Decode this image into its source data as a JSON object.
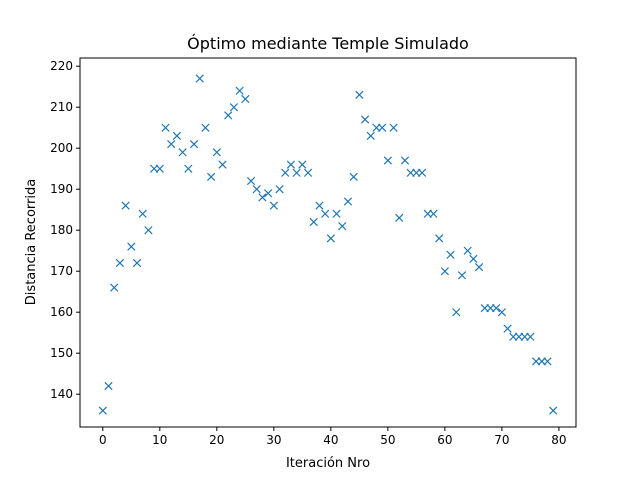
{
  "chart_data": {
    "type": "scatter",
    "title": "Óptimo mediante Temple Simulado",
    "xlabel": "Iteración Nro",
    "ylabel": "Distancia Recorrida",
    "xlim": [
      -4,
      83
    ],
    "ylim": [
      132,
      222
    ],
    "xticks": [
      0,
      10,
      20,
      30,
      40,
      50,
      60,
      70,
      80
    ],
    "yticks": [
      140,
      150,
      160,
      170,
      180,
      190,
      200,
      210,
      220
    ],
    "marker": "x",
    "color": "#1f77b4",
    "grid": false,
    "x": [
      0,
      1,
      2,
      3,
      4,
      5,
      6,
      7,
      8,
      9,
      10,
      11,
      12,
      13,
      14,
      15,
      16,
      17,
      18,
      19,
      20,
      21,
      22,
      23,
      24,
      25,
      26,
      27,
      28,
      29,
      30,
      31,
      32,
      33,
      34,
      35,
      36,
      37,
      38,
      39,
      40,
      41,
      42,
      43,
      44,
      45,
      46,
      47,
      48,
      49,
      50,
      51,
      52,
      53,
      54,
      55,
      56,
      57,
      58,
      59,
      60,
      61,
      62,
      63,
      64,
      65,
      66,
      67,
      68,
      69,
      70,
      71,
      72,
      73,
      74,
      75,
      76,
      77,
      78,
      79
    ],
    "y": [
      136,
      142,
      166,
      172,
      186,
      176,
      172,
      184,
      180,
      195,
      195,
      205,
      201,
      203,
      199,
      195,
      201,
      217,
      205,
      193,
      199,
      196,
      208,
      210,
      214,
      212,
      192,
      190,
      188,
      189,
      186,
      190,
      194,
      196,
      194,
      196,
      194,
      182,
      186,
      184,
      178,
      184,
      181,
      187,
      193,
      213,
      207,
      203,
      205,
      205,
      197,
      205,
      183,
      197,
      194,
      194,
      194,
      184,
      184,
      178,
      170,
      174,
      160,
      169,
      175,
      173,
      171,
      161,
      161,
      161,
      160,
      156,
      154,
      154,
      154,
      154,
      148,
      148,
      148,
      136
    ]
  }
}
